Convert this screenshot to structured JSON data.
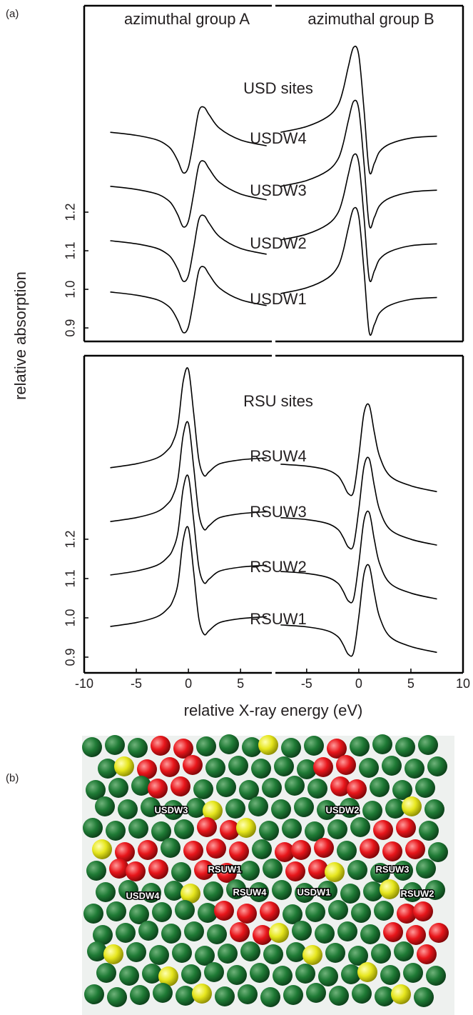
{
  "panel_a_label": "(a)",
  "ylabel": "relative absorption",
  "xlabel": "relative X-ray energy (eV)",
  "chart_data": [
    {
      "type": "line",
      "group_titles": [
        "azimuthal group A",
        "azimuthal group B"
      ],
      "annotations": [
        "USD sites",
        "USDW4",
        "USDW3",
        "USDW2",
        "USDW1"
      ],
      "color": "#000000",
      "x": [
        -7.5,
        -5,
        -3,
        -2,
        -1.5,
        -1,
        -0.5,
        0,
        0.5,
        1,
        1.5,
        2,
        3,
        5,
        7.5
      ],
      "ylim": [
        0.865,
        1.735
      ],
      "yticks": [
        0.9,
        {
          "value": 1,
          "label": "1.0"
        },
        1.1,
        1.2
      ],
      "halves": [
        {
          "xlim": [
            -10,
            8
          ],
          "series": [
            {
              "values": [
                0.993,
                0.985,
                0.973,
                0.958,
                0.943,
                0.918,
                0.888,
                0.903,
                0.973,
                1.048,
                1.058,
                1.038,
                1.003,
                0.973,
                0.958
              ]
            },
            {
              "values": [
                1.126,
                1.118,
                1.106,
                1.091,
                1.076,
                1.051,
                1.021,
                1.036,
                1.106,
                1.181,
                1.191,
                1.171,
                1.136,
                1.106,
                1.091
              ]
            },
            {
              "values": [
                1.267,
                1.259,
                1.247,
                1.232,
                1.217,
                1.192,
                1.162,
                1.177,
                1.247,
                1.322,
                1.332,
                1.312,
                1.277,
                1.247,
                1.232
              ]
            },
            {
              "values": [
                1.407,
                1.399,
                1.387,
                1.372,
                1.357,
                1.332,
                1.302,
                1.317,
                1.387,
                1.462,
                1.472,
                1.452,
                1.417,
                1.387,
                1.372
              ]
            }
          ]
        },
        {
          "xlim": [
            -8,
            10
          ],
          "series": [
            {
              "values": [
                0.989,
                1.004,
                1.029,
                1.059,
                1.099,
                1.159,
                1.209,
                1.189,
                1.049,
                0.889,
                0.909,
                0.939,
                0.959,
                0.974,
                0.979
              ]
            },
            {
              "values": [
                1.128,
                1.143,
                1.168,
                1.198,
                1.238,
                1.298,
                1.348,
                1.328,
                1.188,
                1.028,
                1.048,
                1.078,
                1.098,
                1.113,
                1.118
              ]
            },
            {
              "values": [
                1.267,
                1.282,
                1.307,
                1.337,
                1.377,
                1.437,
                1.487,
                1.467,
                1.327,
                1.167,
                1.187,
                1.217,
                1.237,
                1.252,
                1.257
              ]
            },
            {
              "values": [
                1.407,
                1.422,
                1.447,
                1.477,
                1.517,
                1.577,
                1.627,
                1.607,
                1.467,
                1.307,
                1.327,
                1.357,
                1.377,
                1.392,
                1.397
              ]
            }
          ]
        }
      ]
    },
    {
      "type": "line",
      "annotations": [
        "RSU sites",
        "RSUW4",
        "RSUW3",
        "RSUW2",
        "RSUW1"
      ],
      "color": "#000000",
      "x": [
        -7.5,
        -5,
        -3,
        -2,
        -1.5,
        -1,
        -0.5,
        0,
        0.5,
        1,
        1.5,
        2,
        3,
        5,
        7.5
      ],
      "ylim": [
        0.86,
        1.667
      ],
      "yticks": [
        0.9,
        {
          "value": 1,
          "label": "1.0"
        },
        1.1,
        1.2
      ],
      "halves": [
        {
          "xlim": [
            -10,
            8
          ],
          "xticks": [
            -10,
            -5,
            0,
            5
          ],
          "series": [
            {
              "values": [
                0.978,
                0.988,
                1.003,
                1.023,
                1.043,
                1.088,
                1.198,
                1.228,
                1.118,
                0.998,
                0.958,
                0.968,
                0.988,
                0.998,
                1.003
              ]
            },
            {
              "values": [
                1.109,
                1.119,
                1.134,
                1.154,
                1.174,
                1.219,
                1.329,
                1.359,
                1.249,
                1.129,
                1.089,
                1.099,
                1.119,
                1.129,
                1.134
              ]
            },
            {
              "values": [
                1.245,
                1.255,
                1.27,
                1.29,
                1.31,
                1.355,
                1.465,
                1.495,
                1.385,
                1.265,
                1.225,
                1.235,
                1.255,
                1.265,
                1.27
              ]
            },
            {
              "values": [
                1.382,
                1.392,
                1.407,
                1.427,
                1.447,
                1.492,
                1.602,
                1.632,
                1.522,
                1.402,
                1.362,
                1.372,
                1.392,
                1.402,
                1.407
              ]
            }
          ]
        },
        {
          "xlim": [
            -8,
            10
          ],
          "xticks": [
            -5,
            0,
            5,
            10
          ],
          "series": [
            {
              "values": [
                0.982,
                0.977,
                0.967,
                0.952,
                0.932,
                0.907,
                0.912,
                1.002,
                1.112,
                1.132,
                1.062,
                1.002,
                0.952,
                0.927,
                0.912
              ]
            },
            {
              "values": [
                1.118,
                1.113,
                1.103,
                1.088,
                1.068,
                1.043,
                1.048,
                1.138,
                1.248,
                1.268,
                1.198,
                1.138,
                1.088,
                1.063,
                1.048
              ]
            },
            {
              "values": [
                1.255,
                1.25,
                1.24,
                1.225,
                1.205,
                1.18,
                1.185,
                1.275,
                1.385,
                1.405,
                1.335,
                1.275,
                1.225,
                1.2,
                1.185
              ]
            },
            {
              "values": [
                1.391,
                1.386,
                1.376,
                1.361,
                1.341,
                1.316,
                1.321,
                1.411,
                1.521,
                1.541,
                1.471,
                1.411,
                1.361,
                1.336,
                1.321
              ]
            }
          ]
        }
      ]
    }
  ],
  "panel_b_label": "(b)",
  "panel_b": {
    "labels": [
      "USDW3",
      "USDW2",
      "RSUW1",
      "RSUW3",
      "RSUW4",
      "USDW1",
      "USDW4",
      "RSUW2"
    ]
  }
}
